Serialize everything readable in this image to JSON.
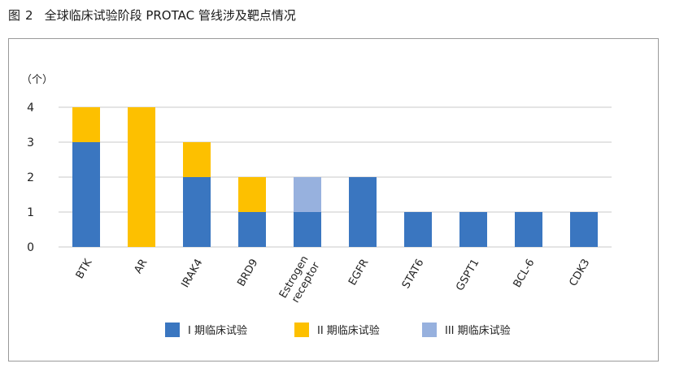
{
  "figure": {
    "label": "图",
    "number": "2",
    "caption": "全球临床试验阶段 PROTAC 管线涉及靶点情况"
  },
  "chart_data": {
    "type": "bar",
    "stacked": true,
    "title": "",
    "xlabel": "",
    "ylabel": "（个）",
    "ylim": [
      0,
      4
    ],
    "yticks": [
      0,
      1,
      2,
      3,
      4
    ],
    "grid": true,
    "legend_position": "bottom",
    "categories": [
      "BTK",
      "AR",
      "IRAK4",
      "BRD9",
      "Estrogen receptor",
      "EGFR",
      "STAT6",
      "GSPT1",
      "BCL-6",
      "CDK3"
    ],
    "series": [
      {
        "name": "I 期临床试验",
        "color": "#3a76c0",
        "values": [
          3,
          0,
          2,
          1,
          1,
          2,
          1,
          1,
          1,
          1
        ]
      },
      {
        "name": "II 期临床试验",
        "color": "#fdc000",
        "values": [
          1,
          4,
          1,
          1,
          0,
          0,
          0,
          0,
          0,
          0
        ]
      },
      {
        "name": "III 期临床试验",
        "color": "#97b1de",
        "values": [
          0,
          0,
          0,
          0,
          1,
          0,
          0,
          0,
          0,
          0
        ]
      }
    ]
  }
}
